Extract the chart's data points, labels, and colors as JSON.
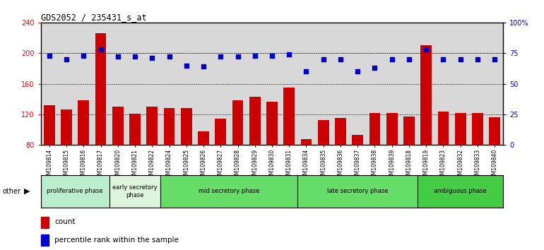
{
  "title": "GDS2052 / 235431_s_at",
  "categories": [
    "GSM109814",
    "GSM109815",
    "GSM109816",
    "GSM109817",
    "GSM109820",
    "GSM109821",
    "GSM109822",
    "GSM109824",
    "GSM109825",
    "GSM109826",
    "GSM109827",
    "GSM109828",
    "GSM109829",
    "GSM109830",
    "GSM109831",
    "GSM109834",
    "GSM109835",
    "GSM109836",
    "GSM109837",
    "GSM109838",
    "GSM109839",
    "GSM109818",
    "GSM109819",
    "GSM109823",
    "GSM109832",
    "GSM109833",
    "GSM109840"
  ],
  "bar_values": [
    132,
    126,
    138,
    226,
    130,
    121,
    130,
    128,
    128,
    98,
    114,
    138,
    143,
    137,
    155,
    88,
    113,
    115,
    93,
    122,
    122,
    117,
    210,
    124,
    122,
    122,
    116
  ],
  "dot_values": [
    73,
    70,
    73,
    78,
    72,
    72,
    71,
    72,
    65,
    64,
    72,
    72,
    73,
    73,
    74,
    60,
    70,
    70,
    60,
    63,
    70,
    70,
    78,
    70,
    70,
    70,
    70
  ],
  "ylim_left": [
    80,
    240
  ],
  "ylim_right": [
    0,
    100
  ],
  "yticks_left": [
    80,
    120,
    160,
    200,
    240
  ],
  "yticks_right": [
    0,
    25,
    50,
    75,
    100
  ],
  "ytick_labels_right": [
    "0",
    "25",
    "50",
    "75",
    "100%"
  ],
  "bar_color": "#cc0000",
  "dot_color": "#0000cc",
  "phases": [
    {
      "label": "proliferative phase",
      "start": 0,
      "end": 4,
      "color": "#bbeecc"
    },
    {
      "label": "early secretory\nphase",
      "start": 4,
      "end": 7,
      "color": "#ddf5dd"
    },
    {
      "label": "mid secretory phase",
      "start": 7,
      "end": 15,
      "color": "#66dd66"
    },
    {
      "label": "late secretory phase",
      "start": 15,
      "end": 22,
      "color": "#66dd66"
    },
    {
      "label": "ambiguous phase",
      "start": 22,
      "end": 27,
      "color": "#44cc44"
    }
  ],
  "other_label": "other",
  "legend_count_label": "count",
  "legend_pct_label": "percentile rank within the sample",
  "plot_bg_color": "#d8d8d8",
  "fig_bg_color": "#ffffff"
}
